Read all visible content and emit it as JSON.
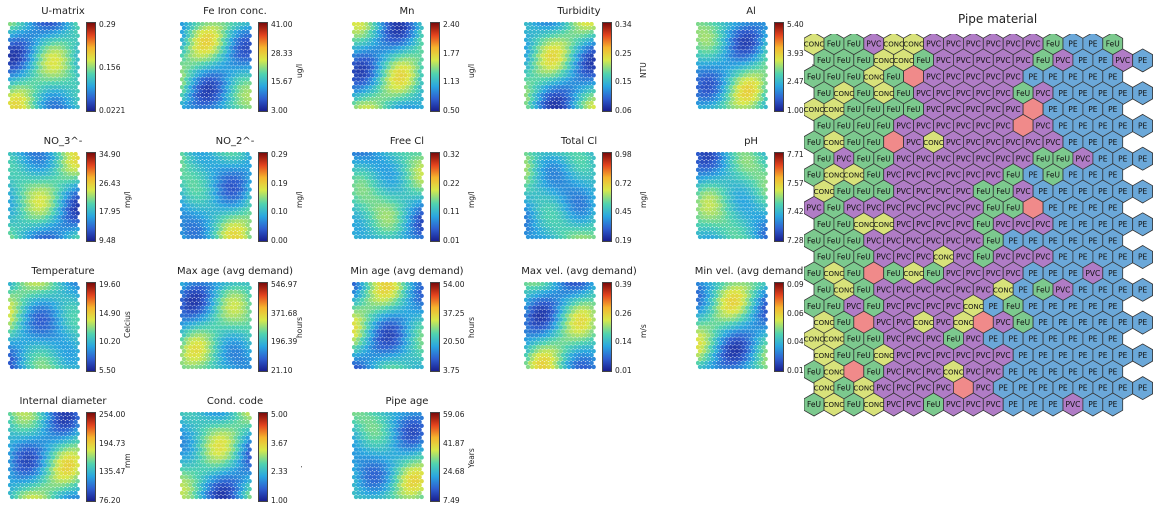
{
  "chart_data": [
    {
      "type": "heatmap",
      "title": "U-matrix",
      "unit": "",
      "ticks": [
        "0.29",
        "0.156",
        "0.0221"
      ],
      "colorbar_range": [
        0.0221,
        0.29
      ]
    },
    {
      "type": "heatmap",
      "title": "Fe Iron conc.",
      "unit": "ug/l",
      "ticks": [
        "41.00",
        "28.33",
        "15.67",
        "3.00"
      ],
      "colorbar_range": [
        3.0,
        41.0
      ]
    },
    {
      "type": "heatmap",
      "title": "Mn",
      "unit": "ug/l",
      "ticks": [
        "2.40",
        "1.77",
        "1.13",
        "0.50"
      ],
      "colorbar_range": [
        0.5,
        2.4
      ]
    },
    {
      "type": "heatmap",
      "title": "Turbidity",
      "unit": "NTU",
      "ticks": [
        "0.34",
        "0.25",
        "0.15",
        "0.06"
      ],
      "colorbar_range": [
        0.06,
        0.34
      ]
    },
    {
      "type": "heatmap",
      "title": "Al",
      "unit": "ug/l",
      "ticks": [
        "5.40",
        "3.93",
        "2.47",
        "1.00"
      ],
      "colorbar_range": [
        1.0,
        5.4
      ]
    },
    {
      "type": "heatmap",
      "title": "NO_3^-",
      "unit": "mg/l",
      "ticks": [
        "34.90",
        "26.43",
        "17.95",
        "9.48"
      ],
      "colorbar_range": [
        9.48,
        34.9
      ]
    },
    {
      "type": "heatmap",
      "title": "NO_2^-",
      "unit": "mg/l",
      "ticks": [
        "0.29",
        "0.19",
        "0.10",
        "0.00"
      ],
      "colorbar_range": [
        0.0,
        0.29
      ]
    },
    {
      "type": "heatmap",
      "title": "Free Cl",
      "unit": "mg/l",
      "ticks": [
        "0.32",
        "0.22",
        "0.11",
        "0.01"
      ],
      "colorbar_range": [
        0.01,
        0.32
      ]
    },
    {
      "type": "heatmap",
      "title": "Total Cl",
      "unit": "mg/l",
      "ticks": [
        "0.98",
        "0.72",
        "0.45",
        "0.19"
      ],
      "colorbar_range": [
        0.19,
        0.98
      ]
    },
    {
      "type": "heatmap",
      "title": "pH",
      "unit": "",
      "ticks": [
        "7.71",
        "7.57",
        "7.42",
        "7.28"
      ],
      "colorbar_range": [
        7.28,
        7.71
      ]
    },
    {
      "type": "heatmap",
      "title": "Temperature",
      "unit": "Celcius",
      "ticks": [
        "19.60",
        "14.90",
        "10.20",
        "5.50"
      ],
      "colorbar_range": [
        5.5,
        19.6
      ]
    },
    {
      "type": "heatmap",
      "title": "Max age  (avg demand)",
      "unit": "hours",
      "ticks": [
        "546.97",
        "371.68",
        "196.39",
        "21.10"
      ],
      "colorbar_range": [
        21.1,
        546.97
      ]
    },
    {
      "type": "heatmap",
      "title": "Min age  (avg demand)",
      "unit": "hours",
      "ticks": [
        "54.00",
        "37.25",
        "20.50",
        "3.75"
      ],
      "colorbar_range": [
        3.75,
        54.0
      ]
    },
    {
      "type": "heatmap",
      "title": "Max vel.  (avg demand)",
      "unit": "m/s",
      "ticks": [
        "0.39",
        "0.26",
        "0.14",
        "0.01"
      ],
      "colorbar_range": [
        0.01,
        0.39
      ]
    },
    {
      "type": "heatmap",
      "title": "Min vel.  (avg demand)",
      "unit": "m/s",
      "ticks": [
        "0.09",
        "0.06",
        "0.04",
        "0.01"
      ],
      "colorbar_range": [
        0.01,
        0.09
      ]
    },
    {
      "type": "heatmap",
      "title": "Internal  diameter",
      "unit": "mm",
      "ticks": [
        "254.00",
        "194.73",
        "135.47",
        "76.20"
      ],
      "colorbar_range": [
        76.2,
        254.0
      ]
    },
    {
      "type": "heatmap",
      "title": "Cond. code",
      "unit": ".",
      "ticks": [
        "5.00",
        "3.67",
        "2.33",
        "1.00"
      ],
      "colorbar_range": [
        1.0,
        5.0
      ]
    },
    {
      "type": "heatmap",
      "title": "Pipe age",
      "unit": "Years",
      "ticks": [
        "59.06",
        "41.87",
        "24.68",
        "7.49"
      ],
      "colorbar_range": [
        7.49,
        59.06
      ]
    },
    {
      "type": "heatmap",
      "title": "Pipe material",
      "legend": {
        "CONC": "#d8e27a",
        "FeU": "#7cc98e",
        "PVC": "#b07cc6",
        "PE": "#6ba8d9",
        "empty": "#f08a8a"
      },
      "rows": [
        [
          "CONC",
          "FeU",
          "FeU",
          "PVC",
          "CONC",
          "CONC",
          "PVC",
          "PVC",
          "PVC",
          "PVC",
          "PVC",
          "PVC",
          "FeU",
          "PE",
          "PE",
          "FeU"
        ],
        [
          "FeU",
          "FeU",
          "FeU",
          "CONC",
          "CONC",
          "FeU",
          "PVC",
          "PVC",
          "PVC",
          "PVC",
          "PVC",
          "FeU",
          "PVC",
          "PE",
          "PE",
          "PVC",
          "PE"
        ],
        [
          "FeU",
          "FeU",
          "FeU",
          "CONC",
          "FeU",
          "",
          "PVC",
          "PVC",
          "PVC",
          "PVC",
          "PVC",
          "PE",
          "PE",
          "PE",
          "PE",
          "PE"
        ],
        [
          "FeU",
          "CONC",
          "FeU",
          "CONC",
          "FeU",
          "PVC",
          "PVC",
          "PVC",
          "PVC",
          "PVC",
          "FeU",
          "PVC",
          "PE",
          "PE",
          "PE",
          "PE",
          "PE"
        ],
        [
          "CONC",
          "CONC",
          "FeU",
          "FeU",
          "FeU",
          "FeU",
          "PVC",
          "PVC",
          "PVC",
          "PVC",
          "PVC",
          "",
          "PE",
          "PE",
          "PE",
          "PE"
        ],
        [
          "FeU",
          "FeU",
          "FeU",
          "FeU",
          "PVC",
          "PVC",
          "PVC",
          "PVC",
          "PVC",
          "PVC",
          "",
          "PVC",
          "PE",
          "PE",
          "PE",
          "PE",
          "PE"
        ],
        [
          "FeU",
          "CONC",
          "FeU",
          "FeU",
          "",
          "PVC",
          "CONC",
          "PVC",
          "PVC",
          "PVC",
          "PVC",
          "PVC",
          "PVC",
          "PE",
          "PE",
          "PE"
        ],
        [
          "FeU",
          "PVC",
          "FeU",
          "FeU",
          "PVC",
          "PVC",
          "PVC",
          "PVC",
          "PVC",
          "PVC",
          "PVC",
          "FeU",
          "FeU",
          "PVC",
          "PE",
          "PE",
          "PE"
        ],
        [
          "FeU",
          "CONC",
          "CONC",
          "FeU",
          "PVC",
          "PVC",
          "PVC",
          "PVC",
          "PVC",
          "PVC",
          "FeU",
          "PE",
          "FeU",
          "PE",
          "PE",
          "PE"
        ],
        [
          "CONC",
          "FeU",
          "FeU",
          "FeU",
          "PVC",
          "PVC",
          "PVC",
          "PVC",
          "FeU",
          "FeU",
          "PVC",
          "PE",
          "PE",
          "PE",
          "PE",
          "PE",
          "PE"
        ],
        [
          "PVC",
          "FeU",
          "PVC",
          "PVC",
          "PVC",
          "PVC",
          "PVC",
          "PVC",
          "PVC",
          "FeU",
          "FeU",
          "",
          "PE",
          "PE",
          "PE",
          "PE"
        ],
        [
          "FeU",
          "FeU",
          "CONC",
          "CONC",
          "PVC",
          "PVC",
          "PVC",
          "PVC",
          "FeU",
          "PVC",
          "PVC",
          "PVC",
          "PE",
          "PE",
          "PE",
          "PE",
          "PE"
        ],
        [
          "FeU",
          "FeU",
          "FeU",
          "PVC",
          "PVC",
          "PVC",
          "PVC",
          "PVC",
          "PVC",
          "FeU",
          "PE",
          "PE",
          "PE",
          "PE",
          "PE",
          "PE"
        ],
        [
          "FeU",
          "FeU",
          "FeU",
          "PVC",
          "PVC",
          "PVC",
          "CONC",
          "PVC",
          "FeU",
          "PVC",
          "PVC",
          "PVC",
          "PE",
          "PE",
          "PE",
          "PE",
          "PE"
        ],
        [
          "FeU",
          "CONC",
          "FeU",
          "",
          "FeU",
          "CONC",
          "FeU",
          "PVC",
          "PVC",
          "PVC",
          "PVC",
          "PE",
          "PE",
          "PE",
          "PVC",
          "PE"
        ],
        [
          "FeU",
          "CONC",
          "FeU",
          "PVC",
          "PVC",
          "PVC",
          "PVC",
          "PVC",
          "PVC",
          "CONC",
          "PE",
          "FeU",
          "PVC",
          "PE",
          "PE",
          "PE",
          "PE"
        ],
        [
          "FeU",
          "FeU",
          "PVC",
          "FeU",
          "PVC",
          "PVC",
          "PVC",
          "PVC",
          "CONC",
          "PE",
          "FeU",
          "PE",
          "PE",
          "PE",
          "PE",
          "PE"
        ],
        [
          "CONC",
          "FeU",
          "",
          "PVC",
          "PVC",
          "CONC",
          "PVC",
          "CONC",
          "",
          "PVC",
          "FeU",
          "PE",
          "PE",
          "PE",
          "PE",
          "PE",
          "PE"
        ],
        [
          "CONC",
          "CONC",
          "FeU",
          "FeU",
          "PVC",
          "PVC",
          "PVC",
          "FeU",
          "PVC",
          "PE",
          "PE",
          "PE",
          "PE",
          "PE",
          "PE",
          "PE"
        ],
        [
          "CONC",
          "FeU",
          "FeU",
          "CONC",
          "PVC",
          "PVC",
          "PVC",
          "PVC",
          "PVC",
          "PVC",
          "PE",
          "PE",
          "PE",
          "PE",
          "PE",
          "PE",
          "PE"
        ],
        [
          "FeU",
          "CONC",
          "",
          "FeU",
          "PVC",
          "PVC",
          "PVC",
          "CONC",
          "PVC",
          "PVC",
          "PE",
          "PE",
          "PE",
          "PE",
          "PE",
          "PE"
        ],
        [
          "CONC",
          "FeU",
          "CONC",
          "PVC",
          "PVC",
          "PVC",
          "PVC",
          "",
          "PVC",
          "PE",
          "PE",
          "PE",
          "PE",
          "PE",
          "PE",
          "PE",
          "PE"
        ],
        [
          "FeU",
          "CONC",
          "FeU",
          "CONC",
          "PVC",
          "PVC",
          "FeU",
          "PVC",
          "PVC",
          "PVC",
          "PE",
          "PE",
          "PE",
          "PVC",
          "PE",
          "PE"
        ]
      ]
    }
  ],
  "colors": {
    "CONC": "#d8e27a",
    "FeU": "#7cc98e",
    "PVC": "#b07cc6",
    "PE": "#6ba8d9",
    "empty": "#f08a8a",
    "hex_stroke": "#333333"
  }
}
